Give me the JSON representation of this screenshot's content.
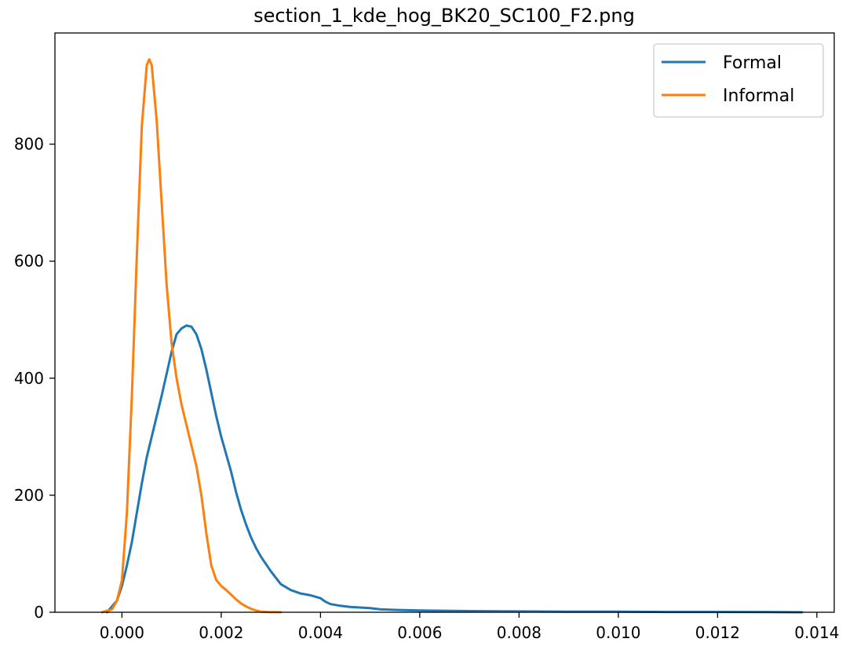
{
  "chart_data": {
    "type": "line",
    "title": "section_1_kde_hog_BK20_SC100_F2.png",
    "xlabel": "",
    "ylabel": "",
    "xlim": [
      -0.00135,
      0.01435
    ],
    "ylim": [
      0,
      990
    ],
    "x_ticks": [
      0.0,
      0.002,
      0.004,
      0.006,
      0.008,
      0.01,
      0.012,
      0.014
    ],
    "x_tick_labels": [
      "0.000",
      "0.002",
      "0.004",
      "0.006",
      "0.008",
      "0.010",
      "0.012",
      "0.014"
    ],
    "y_ticks": [
      0,
      200,
      400,
      600,
      800
    ],
    "y_tick_labels": [
      "0",
      "200",
      "400",
      "600",
      "800"
    ],
    "grid": false,
    "legend_position": "upper-right",
    "series": [
      {
        "name": "Formal",
        "color": "#1f77b4",
        "x": [
          -0.0003,
          -0.0001,
          0.0,
          0.0001,
          0.0002,
          0.0003,
          0.0004,
          0.0005,
          0.0006,
          0.0008,
          0.001,
          0.0011,
          0.0012,
          0.0013,
          0.0014,
          0.0015,
          0.0016,
          0.0017,
          0.0018,
          0.0019,
          0.002,
          0.0021,
          0.0022,
          0.0023,
          0.0024,
          0.0025,
          0.0026,
          0.0027,
          0.0028,
          0.003,
          0.0032,
          0.0034,
          0.0035,
          0.0036,
          0.0038,
          0.004,
          0.0041,
          0.0042,
          0.0044,
          0.0046,
          0.0048,
          0.005,
          0.0052,
          0.0055,
          0.006,
          0.007,
          0.008,
          0.009,
          0.01,
          0.011,
          0.012,
          0.013,
          0.0137
        ],
        "y": [
          0,
          20,
          45,
          80,
          120,
          170,
          220,
          265,
          300,
          370,
          445,
          475,
          485,
          490,
          488,
          475,
          450,
          415,
          375,
          335,
          300,
          270,
          240,
          205,
          175,
          150,
          128,
          110,
          95,
          70,
          48,
          38,
          35,
          32,
          29,
          24,
          18,
          14,
          11,
          9,
          8,
          7,
          5,
          4,
          3,
          2,
          1.5,
          1,
          1,
          0.5,
          0.5,
          0.3,
          0
        ]
      },
      {
        "name": "Informal",
        "color": "#ff7f0e",
        "x": [
          -0.0004,
          -0.0002,
          -0.0001,
          0.0,
          0.0001,
          0.0002,
          0.0003,
          0.0004,
          0.0005,
          0.00055,
          0.0006,
          0.0007,
          0.0008,
          0.0009,
          0.001,
          0.0011,
          0.0012,
          0.0013,
          0.0014,
          0.0015,
          0.0016,
          0.0017,
          0.0018,
          0.0019,
          0.002,
          0.0021,
          0.0022,
          0.0023,
          0.0024,
          0.0025,
          0.0026,
          0.0027,
          0.0028,
          0.0029,
          0.003,
          0.0031,
          0.0032
        ],
        "y": [
          0,
          5,
          20,
          55,
          170,
          370,
          610,
          830,
          935,
          945,
          935,
          840,
          700,
          560,
          460,
          400,
          355,
          320,
          285,
          250,
          200,
          135,
          80,
          55,
          45,
          38,
          30,
          22,
          15,
          10,
          6,
          3,
          1,
          0.5,
          0.2,
          0.1,
          0
        ]
      }
    ]
  }
}
